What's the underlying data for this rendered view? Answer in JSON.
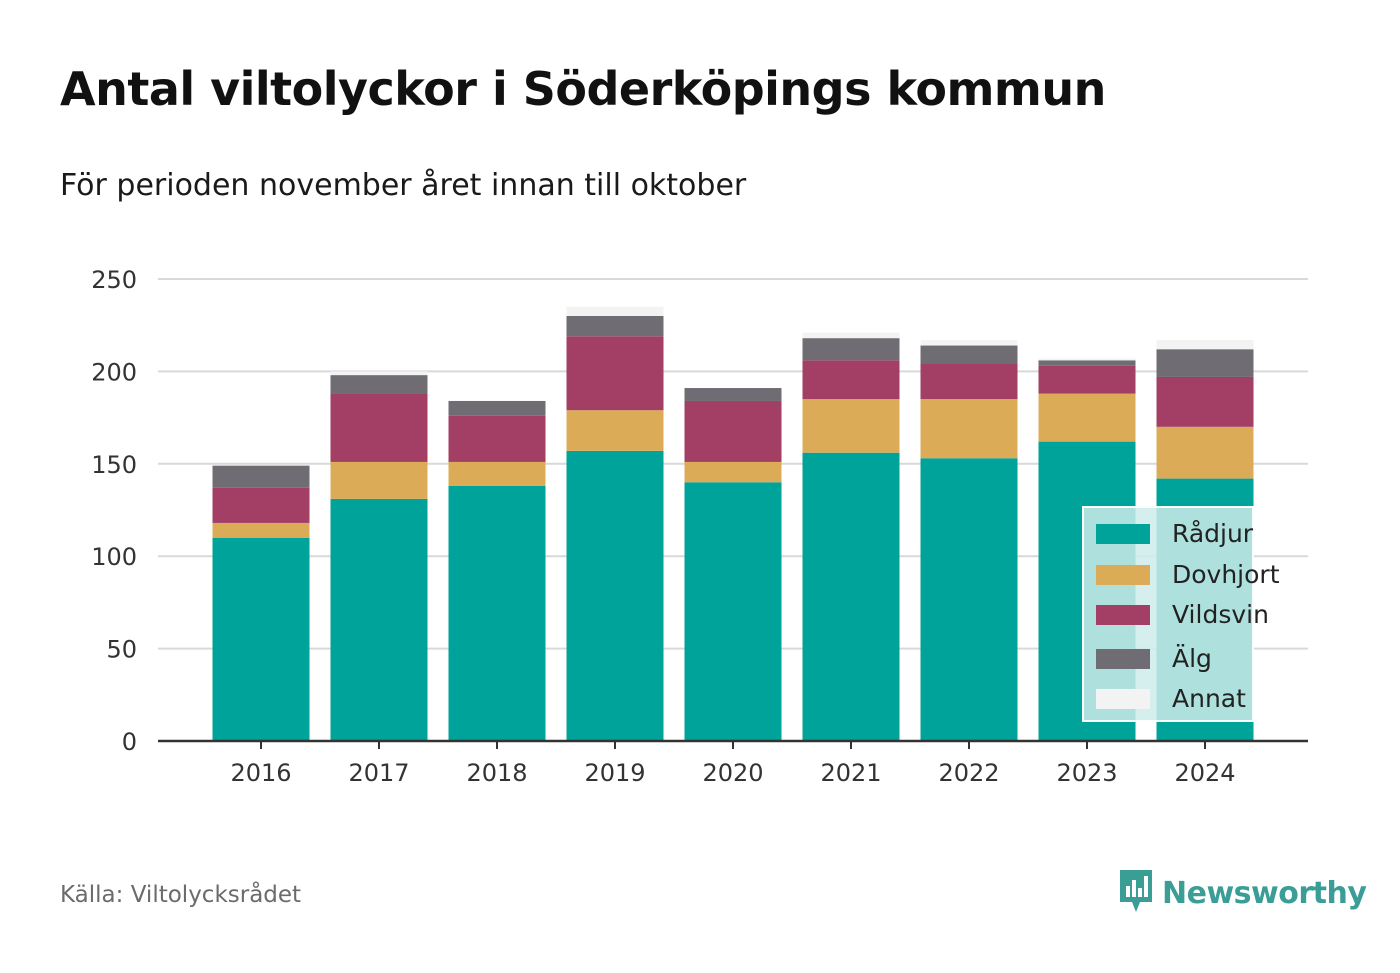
{
  "title": "Antal viltolyckor i Söderköpings kommun",
  "subtitle": "För perioden november året innan till oktober",
  "source": "Källa: Viltolycksrådet",
  "brand": {
    "name": "Newsworthy",
    "icon": "newsworthy-logo-icon",
    "color": "#3a9e96"
  },
  "chart_data": {
    "type": "bar",
    "stacked": true,
    "categories": [
      "2016",
      "2017",
      "2018",
      "2019",
      "2020",
      "2021",
      "2022",
      "2023",
      "2024"
    ],
    "series": [
      {
        "name": "Rådjur",
        "color": "#00a39a",
        "values": [
          110,
          131,
          138,
          157,
          140,
          156,
          153,
          162,
          142
        ]
      },
      {
        "name": "Dovhjort",
        "color": "#dbab58",
        "values": [
          8,
          20,
          13,
          22,
          11,
          29,
          32,
          26,
          28
        ]
      },
      {
        "name": "Vildsvin",
        "color": "#a33f64",
        "values": [
          19,
          37,
          25,
          40,
          33,
          21,
          19,
          15,
          27
        ]
      },
      {
        "name": "Älg",
        "color": "#6f6c73",
        "values": [
          12,
          10,
          8,
          11,
          7,
          12,
          10,
          3,
          15
        ]
      },
      {
        "name": "Annat",
        "color": "#f3f3f3",
        "values": [
          0,
          2,
          0,
          5,
          0,
          3,
          3,
          1,
          5
        ]
      }
    ],
    "ylim": [
      0,
      250
    ],
    "yticks": [
      "0",
      "50",
      "100",
      "150",
      "200",
      "250"
    ],
    "grid": true,
    "legend_position": "bottom-right"
  }
}
